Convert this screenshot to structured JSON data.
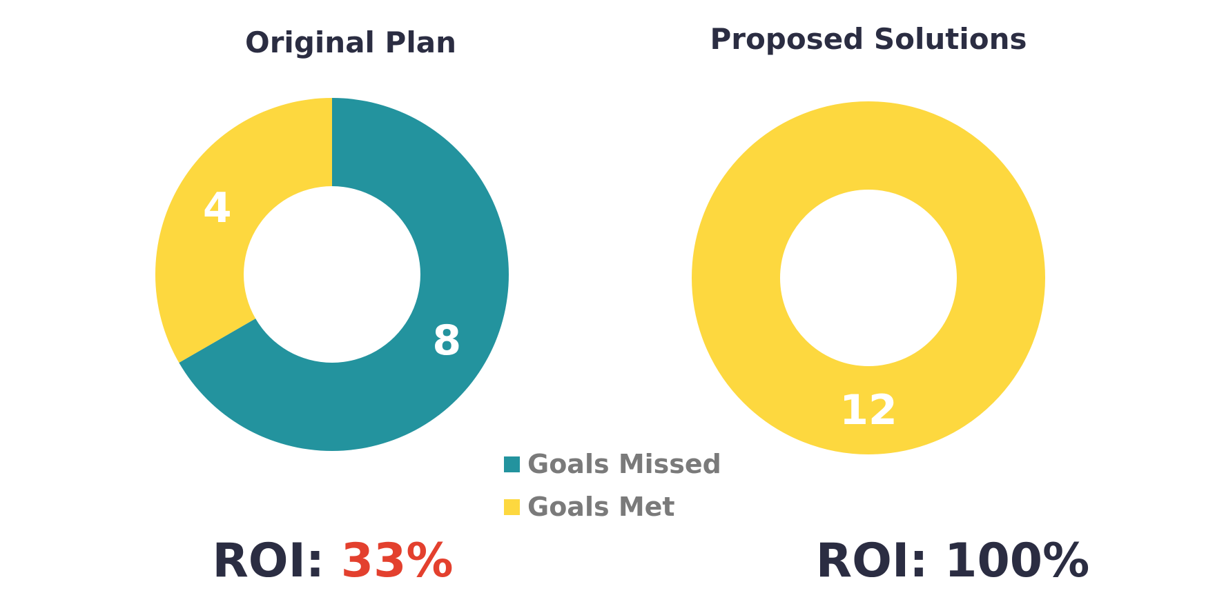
{
  "chart_data": [
    {
      "type": "pie",
      "title": "Original Plan",
      "categories": [
        "Goals Missed",
        "Goals Met"
      ],
      "values": [
        8,
        4
      ],
      "colors": [
        "#23939e",
        "#fdd83f"
      ],
      "roi_label": "ROI:",
      "roi_value": "33%",
      "roi_value_color": "#e3402e"
    },
    {
      "type": "pie",
      "title": "Proposed Solutions",
      "categories": [
        "Goals Missed",
        "Goals Met"
      ],
      "values": [
        0,
        12
      ],
      "colors": [
        "#23939e",
        "#fdd83f"
      ],
      "roi_label": "ROI:",
      "roi_value": "100%",
      "roi_value_color": "#2b2d42"
    }
  ],
  "legend": {
    "items": [
      {
        "label": "Goals Missed",
        "color": "#23939e"
      },
      {
        "label": "Goals Met",
        "color": "#fdd83f"
      }
    ]
  }
}
